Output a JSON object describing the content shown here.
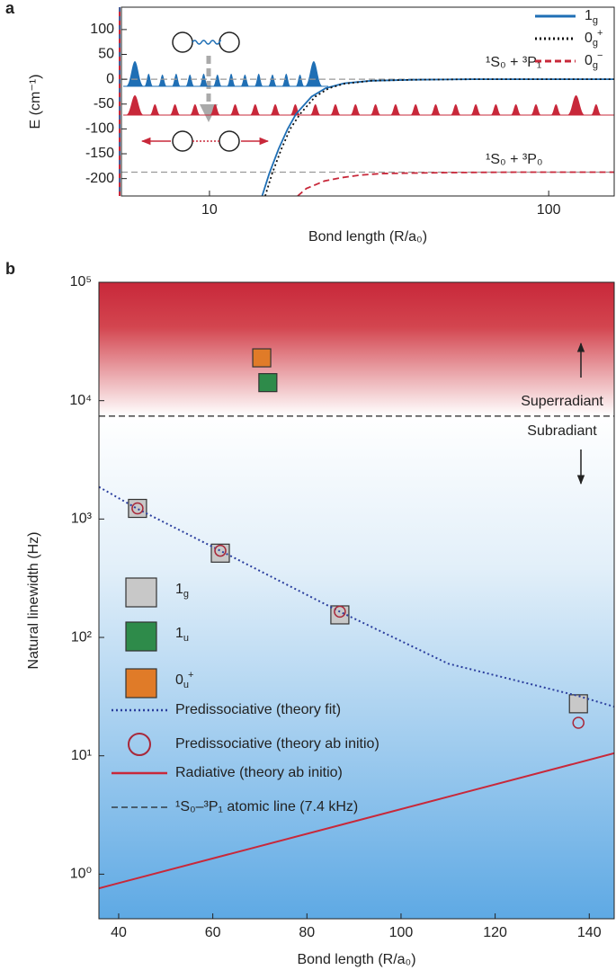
{
  "chart_data": [
    {
      "type": "line",
      "panel_label": "a",
      "xlabel": "Bond length (R/a₀)",
      "ylabel": "E (cm⁻¹)",
      "xscale": "log",
      "xlim": [
        5.5,
        156
      ],
      "xticks": [
        10,
        100
      ],
      "ylim": [
        -235,
        145
      ],
      "yticks": [
        -200,
        -150,
        -100,
        -50,
        0,
        50,
        100
      ],
      "reference_lines": [
        0,
        -187
      ],
      "annotations": [
        "¹S₀ + ³P₁",
        "¹S₀ + ³P₀"
      ],
      "legend": "upper right",
      "series": [
        {
          "name": "1g",
          "color": "#1f6fb5",
          "style": "solid",
          "x": [
            14.3,
            15,
            16,
            17,
            18,
            20,
            22,
            25,
            30,
            40,
            60,
            156
          ],
          "values": [
            -235,
            -190,
            -140,
            -100,
            -70,
            -35,
            -18,
            -8,
            -3,
            -1,
            0,
            0
          ]
        },
        {
          "name": "0g+",
          "color": "#111111",
          "style": "dotted",
          "x": [
            14.6,
            15.3,
            16.3,
            17.3,
            18.5,
            20.5,
            22.5,
            25,
            30,
            40,
            60,
            156
          ],
          "values": [
            -235,
            -190,
            -140,
            -100,
            -70,
            -35,
            -18,
            -9,
            -3,
            -1,
            0,
            0
          ]
        },
        {
          "name": "0g−",
          "color": "#c8283a",
          "style": "dashed",
          "x": [
            18.2,
            19.3,
            21.8,
            24.5,
            27.8,
            32,
            37.7,
            50,
            80,
            156
          ],
          "values": [
            -235,
            -220,
            -205,
            -198,
            -193,
            -190,
            -189,
            -188,
            -187,
            -187
          ]
        }
      ]
    },
    {
      "type": "scatter",
      "panel_label": "b",
      "xlabel": "Bond length (R/a₀)",
      "ylabel": "Natural linewidth (Hz)",
      "xlim": [
        35.8,
        145.3
      ],
      "xticks": [
        40,
        60,
        80,
        100,
        120,
        140
      ],
      "yscale": "log",
      "ylim": [
        0.42,
        100000
      ],
      "yticks": [
        {
          "value": 1,
          "label": "10⁰"
        },
        {
          "value": 10,
          "label": "10¹"
        },
        {
          "value": 100,
          "label": "10²"
        },
        {
          "value": 1000,
          "label": "10³"
        },
        {
          "value": 10000,
          "label": "10⁴"
        },
        {
          "value": 100000,
          "label": "10⁵"
        }
      ],
      "annotations": [
        "Superradiant",
        "Subradiant"
      ],
      "legend": "lower left",
      "series": [
        {
          "name": "1g",
          "color": "#c8c8c8",
          "style": "square",
          "x": [
            44,
            61.6,
            87,
            137.7
          ],
          "values": [
            1230,
            515,
            155,
            27.5
          ]
        },
        {
          "name": "1u",
          "color": "#2e8b4a",
          "style": "square",
          "x": [
            71.7
          ],
          "values": [
            14200
          ]
        },
        {
          "name": "0u+",
          "color": "#e07b28",
          "style": "square",
          "x": [
            70.4
          ],
          "values": [
            23000
          ]
        },
        {
          "name": "Predissociative (theory fit)",
          "color": "#2b3f9e",
          "style": "dotted",
          "x": [
            35.8,
            44,
            61.6,
            87,
            110,
            137.7,
            145.3
          ],
          "values": [
            1870,
            1220,
            540,
            165,
            60,
            32,
            26
          ]
        },
        {
          "name": "Predissociative (theory ab initio)",
          "color": "#a8283a",
          "style": "circle",
          "x": [
            44,
            61.6,
            87,
            137.7
          ],
          "values": [
            1230,
            540,
            165,
            19
          ]
        },
        {
          "name": "Radiative (theory ab initio)",
          "color": "#c8283a",
          "style": "solid",
          "x": [
            35.8,
            145.3
          ],
          "values": [
            0.76,
            10.5
          ]
        },
        {
          "name": "¹S₀–³P₁ atomic line (7.4 kHz)",
          "color": "#222222",
          "style": "hline",
          "values": [
            7400
          ]
        }
      ]
    }
  ]
}
